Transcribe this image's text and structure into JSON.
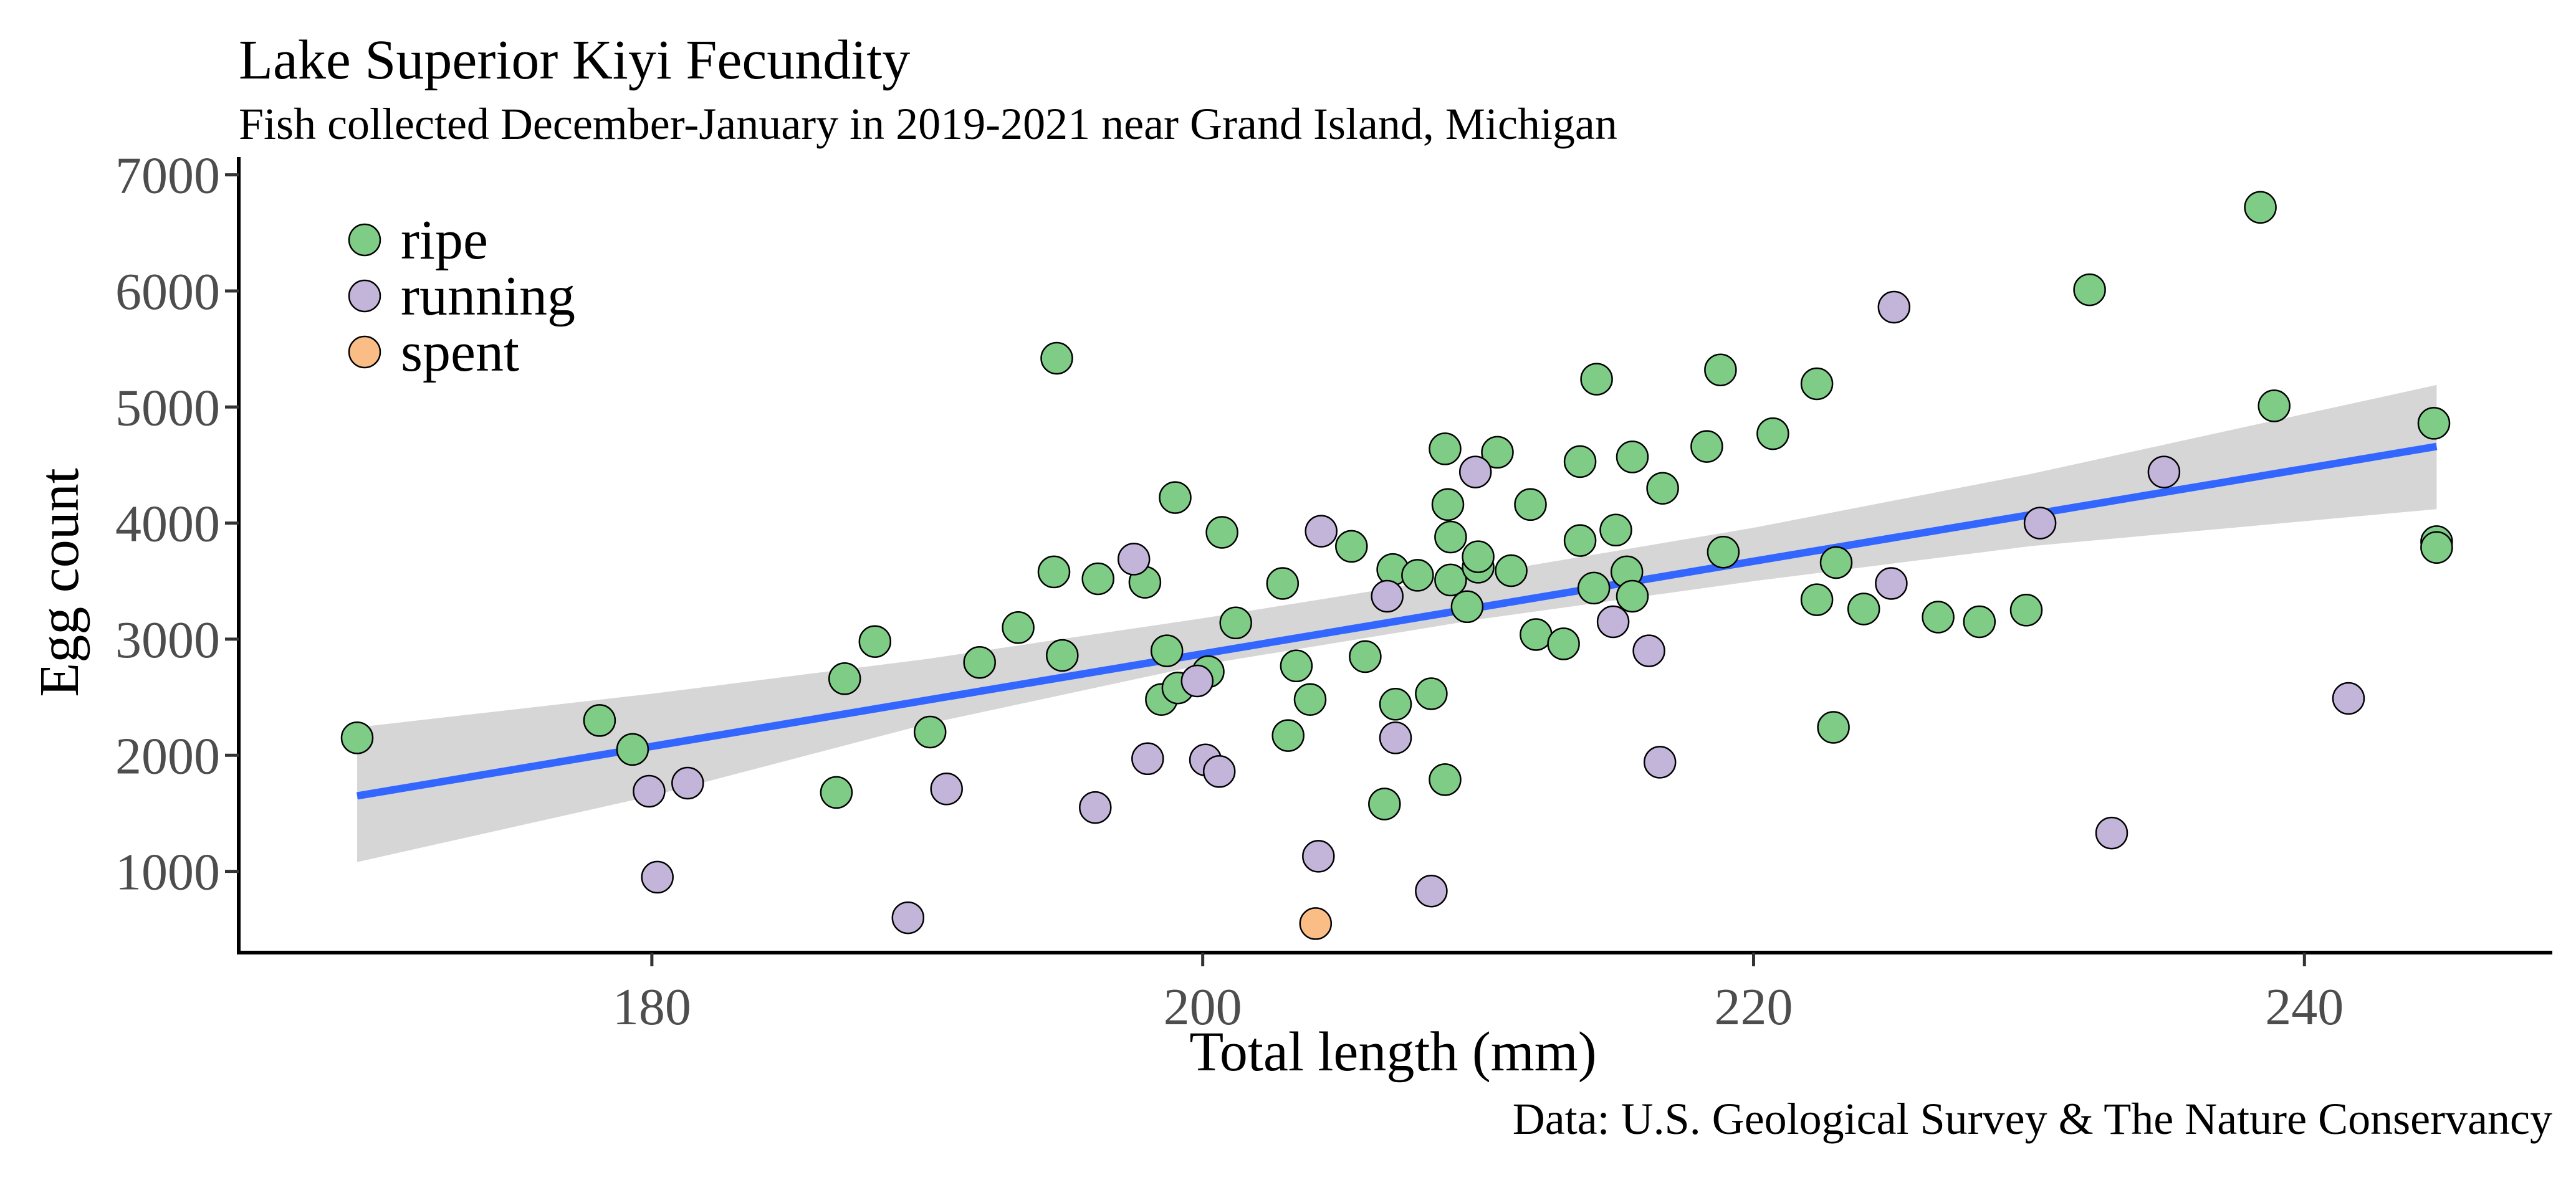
{
  "chart_data": {
    "type": "scatter",
    "title": "Lake Superior Kiyi Fecundity",
    "subtitle": "Fish collected December-January in 2019-2021 near Grand Island, Michigan",
    "caption": "Data: U.S. Geological Survey & The Nature Conservancy",
    "xlabel": "Total length (mm)",
    "ylabel": "Egg count",
    "xlim": [
      165,
      249
    ],
    "ylim": [
      300,
      7100
    ],
    "x_ticks": [
      180,
      200,
      220,
      240
    ],
    "y_ticks": [
      1000,
      2000,
      3000,
      4000,
      5000,
      6000,
      7000
    ],
    "grid": false,
    "legend_position": "top-left",
    "colors": {
      "ripe": "#7fcc86",
      "running": "#c3b5da",
      "spent": "#fbbd86",
      "fit_line": "#3366ff",
      "confidence_band": "#d6d6d6"
    },
    "legend": [
      {
        "key": "ripe",
        "label": "ripe"
      },
      {
        "key": "running",
        "label": "running"
      },
      {
        "key": "spent",
        "label": "spent"
      }
    ],
    "series": [
      {
        "name": "ripe",
        "points": [
          [
            169.3,
            2150
          ],
          [
            178.1,
            2300
          ],
          [
            179.3,
            2050
          ],
          [
            186.7,
            1680
          ],
          [
            187.0,
            2660
          ],
          [
            188.1,
            2980
          ],
          [
            190.1,
            2200
          ],
          [
            191.9,
            2800
          ],
          [
            193.3,
            3100
          ],
          [
            194.6,
            3580
          ],
          [
            194.7,
            5420
          ],
          [
            194.9,
            2860
          ],
          [
            196.2,
            3520
          ],
          [
            197.9,
            3490
          ],
          [
            198.5,
            2480
          ],
          [
            198.7,
            2900
          ],
          [
            199.0,
            4220
          ],
          [
            199.1,
            2580
          ],
          [
            200.2,
            2720
          ],
          [
            200.7,
            3920
          ],
          [
            201.2,
            3140
          ],
          [
            202.9,
            3480
          ],
          [
            203.1,
            2170
          ],
          [
            203.4,
            2770
          ],
          [
            203.9,
            2480
          ],
          [
            205.4,
            3800
          ],
          [
            205.9,
            2850
          ],
          [
            206.6,
            1580
          ],
          [
            206.9,
            3600
          ],
          [
            207.0,
            2440
          ],
          [
            207.8,
            3550
          ],
          [
            208.3,
            2530
          ],
          [
            208.8,
            1790
          ],
          [
            208.8,
            4640
          ],
          [
            208.9,
            4160
          ],
          [
            209.0,
            3880
          ],
          [
            209.0,
            3510
          ],
          [
            209.6,
            3280
          ],
          [
            210.0,
            3620
          ],
          [
            210.0,
            3710
          ],
          [
            210.7,
            4610
          ],
          [
            211.2,
            3590
          ],
          [
            211.9,
            4160
          ],
          [
            212.1,
            3040
          ],
          [
            213.1,
            2960
          ],
          [
            213.7,
            3850
          ],
          [
            213.7,
            4530
          ],
          [
            214.2,
            3440
          ],
          [
            214.3,
            5240
          ],
          [
            215.0,
            3940
          ],
          [
            215.4,
            3580
          ],
          [
            215.6,
            3370
          ],
          [
            215.6,
            4570
          ],
          [
            216.7,
            4300
          ],
          [
            218.3,
            4660
          ],
          [
            218.8,
            5320
          ],
          [
            218.9,
            3750
          ],
          [
            220.7,
            4770
          ],
          [
            222.3,
            3340
          ],
          [
            222.3,
            5200
          ],
          [
            222.9,
            2240
          ],
          [
            223.0,
            3660
          ],
          [
            224.0,
            3260
          ],
          [
            226.7,
            3190
          ],
          [
            228.2,
            3150
          ],
          [
            229.9,
            3250
          ],
          [
            232.2,
            6010
          ],
          [
            238.4,
            6720
          ],
          [
            238.9,
            5010
          ],
          [
            244.7,
            4860
          ],
          [
            244.8,
            3840
          ],
          [
            244.8,
            3790
          ]
        ]
      },
      {
        "name": "running",
        "points": [
          [
            179.9,
            1690
          ],
          [
            180.2,
            950
          ],
          [
            181.3,
            1760
          ],
          [
            189.3,
            600
          ],
          [
            190.7,
            1710
          ],
          [
            196.1,
            1550
          ],
          [
            197.5,
            3690
          ],
          [
            198.0,
            1970
          ],
          [
            199.8,
            2640
          ],
          [
            200.1,
            1960
          ],
          [
            200.6,
            1860
          ],
          [
            204.2,
            1130
          ],
          [
            204.3,
            3930
          ],
          [
            206.7,
            3370
          ],
          [
            207.0,
            2150
          ],
          [
            208.3,
            830
          ],
          [
            209.9,
            4440
          ],
          [
            214.9,
            3150
          ],
          [
            216.2,
            2900
          ],
          [
            216.6,
            1940
          ],
          [
            225.1,
            5860
          ],
          [
            225.0,
            3480
          ],
          [
            230.4,
            4000
          ],
          [
            233.0,
            1330
          ],
          [
            234.9,
            4440
          ],
          [
            241.6,
            2490
          ]
        ]
      },
      {
        "name": "spent",
        "points": [
          [
            204.1,
            550
          ]
        ]
      }
    ],
    "fit": {
      "method": "linear",
      "x_range": [
        169.3,
        244.8
      ],
      "y_at_range": [
        1650,
        4660
      ],
      "band": [
        [
          169.3,
          1080,
          2240
        ],
        [
          180,
          1650,
          2530
        ],
        [
          190,
          2270,
          2830
        ],
        [
          200,
          2780,
          3180
        ],
        [
          210,
          3170,
          3560
        ],
        [
          220,
          3500,
          3960
        ],
        [
          230,
          3800,
          4420
        ],
        [
          244.8,
          4120,
          5190
        ]
      ]
    }
  }
}
